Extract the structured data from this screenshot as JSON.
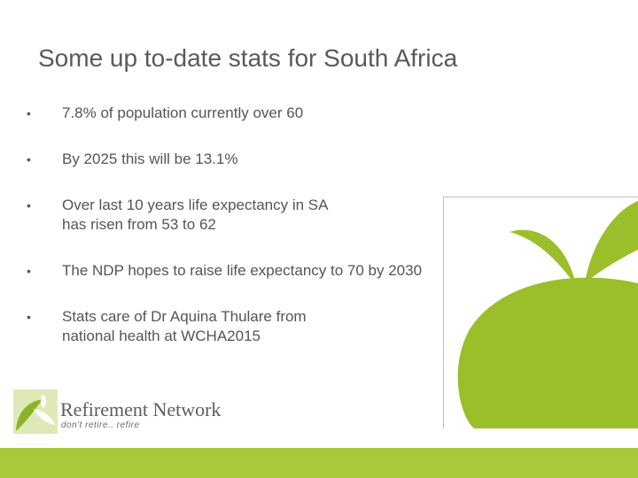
{
  "slide": {
    "title": "Some up to-date stats for South Africa",
    "bullets": [
      {
        "lines": [
          "7.8% of population currently over 60"
        ]
      },
      {
        "lines": [
          "By 2025 this will be 13.1%"
        ]
      },
      {
        "lines": [
          "Over last 10 years life expectancy in SA",
          "has risen from 53 to 62"
        ]
      },
      {
        "lines": [
          "The NDP hopes to raise life expectancy to 70 by 2030"
        ]
      },
      {
        "lines": [
          "Stats care of Dr Aquina Thulare from",
          "national health at WCHA2015"
        ]
      }
    ],
    "bullet_symbol": "•"
  },
  "logo": {
    "name": "Refirement Network",
    "tagline": "don't retire.. refire"
  },
  "colors": {
    "accent_green": "#9bbf2a",
    "footer_green": "#a9c93a",
    "text_gray": "#555555"
  },
  "icons": {
    "leaf_art": "leaf-graphic-icon",
    "logo_mark": "leaf-logo-icon"
  }
}
